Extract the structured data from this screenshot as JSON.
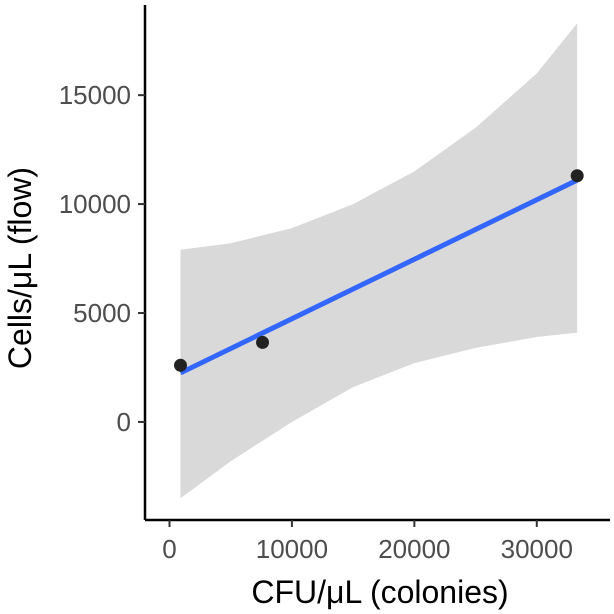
{
  "chart_data": {
    "type": "scatter",
    "xlabel": "CFU/μL (colonies)",
    "ylabel": "Cells/μL (flow)",
    "xlim": [
      -2000,
      35000
    ],
    "ylim": [
      -4500,
      19000
    ],
    "x_ticks": [
      0,
      10000,
      20000,
      30000
    ],
    "y_ticks": [
      0,
      5000,
      10000,
      15000
    ],
    "x_tick_labels": [
      "0",
      "10000",
      "20000",
      "30000"
    ],
    "y_tick_labels": [
      "0",
      "5000",
      "10000",
      "15000"
    ],
    "points": [
      {
        "x": 900,
        "y": 2600
      },
      {
        "x": 7600,
        "y": 3650
      },
      {
        "x": 33300,
        "y": 11300
      }
    ],
    "fit_line": {
      "x": [
        900,
        33300
      ],
      "y": [
        2250,
        11100
      ],
      "color": "#3366ff"
    },
    "confidence_band": {
      "x": [
        900,
        5000,
        10000,
        15000,
        20000,
        25000,
        30000,
        33300
      ],
      "upper": [
        7900,
        8200,
        8900,
        10000,
        11500,
        13500,
        16000,
        18300
      ],
      "lower": [
        -3500,
        -1800,
        0,
        1600,
        2700,
        3400,
        3900,
        4100
      ],
      "color": "#d9d9d9"
    },
    "point_color": "#222222",
    "grid": false,
    "legend": false
  }
}
